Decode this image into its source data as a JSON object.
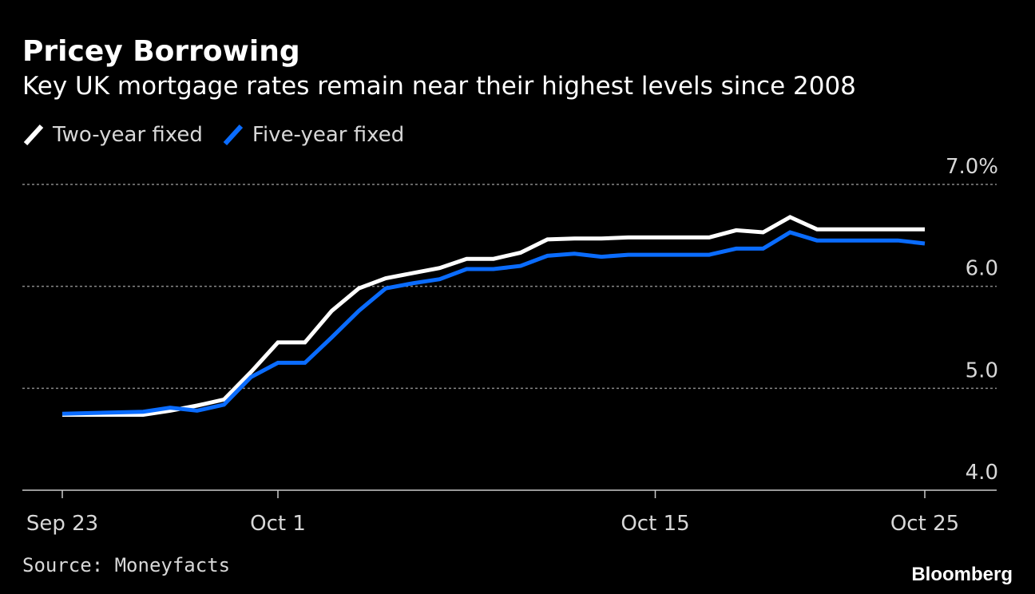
{
  "chart_data": {
    "type": "line",
    "title": "Pricey Borrowing",
    "subtitle": "Key UK mortgage rates remain near their highest levels since 2008",
    "source": "Source: Moneyfacts",
    "brand": "Bloomberg",
    "x": [
      "Sep 23",
      "Sep 26",
      "Sep 27",
      "Sep 28",
      "Sep 29",
      "Sep 30",
      "Oct 1",
      "Oct 2",
      "Oct 3",
      "Oct 4",
      "Oct 5",
      "Oct 6",
      "Oct 7",
      "Oct 8",
      "Oct 9",
      "Oct 10",
      "Oct 11",
      "Oct 12",
      "Oct 13",
      "Oct 14",
      "Oct 15",
      "Oct 16",
      "Oct 17",
      "Oct 18",
      "Oct 19",
      "Oct 20",
      "Oct 21",
      "Oct 22",
      "Oct 23",
      "Oct 24",
      "Oct 25"
    ],
    "xticks": [
      "Sep 23",
      "Oct 1",
      "Oct 15",
      "Oct 25"
    ],
    "series": [
      {
        "name": "Two-year fixed",
        "color": "#ffffff",
        "values": [
          4.74,
          4.74,
          4.78,
          4.83,
          4.89,
          5.16,
          5.45,
          5.45,
          5.76,
          5.98,
          6.08,
          6.13,
          6.18,
          6.27,
          6.27,
          6.33,
          6.46,
          6.47,
          6.47,
          6.48,
          6.48,
          6.48,
          6.48,
          6.55,
          6.53,
          6.68,
          6.56,
          6.56,
          6.56,
          6.56,
          6.56
        ]
      },
      {
        "name": "Five-year fixed",
        "color": "#0a6cff",
        "values": [
          4.75,
          4.77,
          4.81,
          4.78,
          4.84,
          5.11,
          5.25,
          5.25,
          5.5,
          5.76,
          5.98,
          6.03,
          6.07,
          6.17,
          6.17,
          6.2,
          6.3,
          6.32,
          6.29,
          6.31,
          6.31,
          6.31,
          6.31,
          6.37,
          6.37,
          6.53,
          6.45,
          6.45,
          6.45,
          6.45,
          6.42
        ]
      }
    ],
    "ylim": [
      4,
      7
    ],
    "yticks": [
      {
        "value": 4,
        "label": "4.0"
      },
      {
        "value": 5,
        "label": "5.0"
      },
      {
        "value": 6,
        "label": "6.0"
      },
      {
        "value": 7,
        "label": "7.0%"
      }
    ],
    "grid": true
  }
}
